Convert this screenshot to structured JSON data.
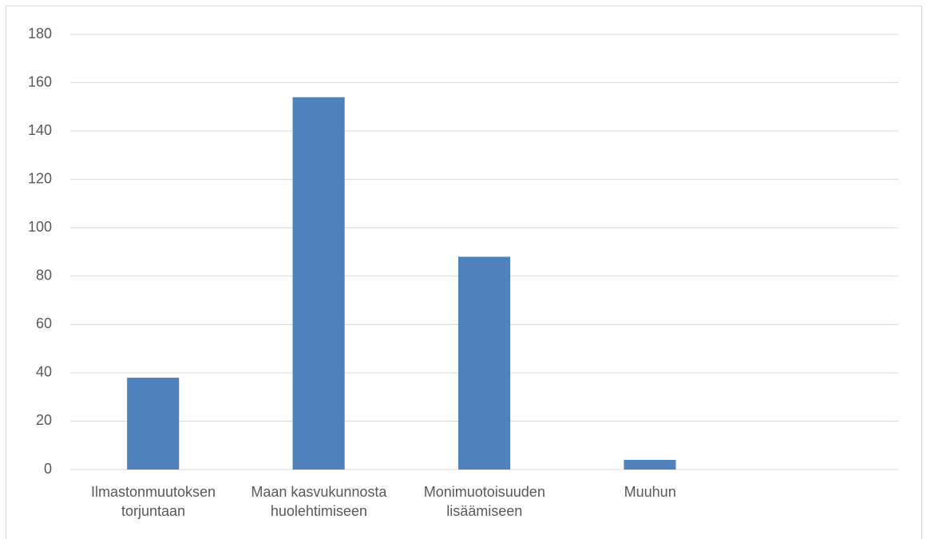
{
  "chart_data": {
    "type": "bar",
    "categories": [
      "Ilmastonmuutoksen torjuntaan",
      "Maan kasvukunnosta huolehtimiseen",
      "Monimuotoisuuden lisäämiseen",
      "Muuhun",
      null
    ],
    "values": [
      38,
      154,
      88,
      4,
      null
    ],
    "color": "#4f81bd",
    "ylim": [
      0,
      180
    ],
    "yticks": [
      0,
      20,
      40,
      60,
      80,
      100,
      120,
      140,
      160,
      180
    ],
    "grid": true
  }
}
